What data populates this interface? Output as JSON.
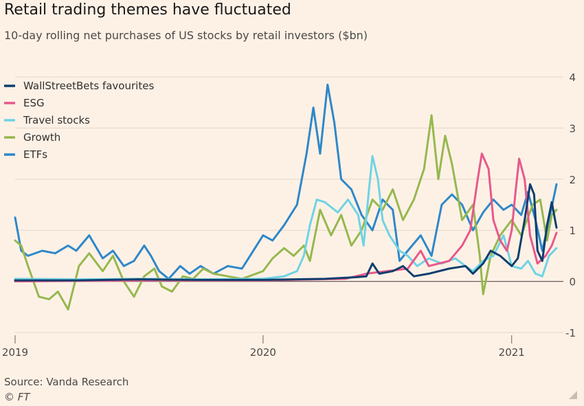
{
  "title": "Retail trading themes have fluctuated",
  "subtitle": "10-day rolling net purchases of US stocks by retail investors ($bn)",
  "source": "Source: Vanda Research",
  "copyright": "© FT",
  "chart_data": {
    "type": "line",
    "x_unit": "date",
    "x_ticks": [
      {
        "label": "2019",
        "date": "2019-01-01"
      },
      {
        "label": "2020",
        "date": "2020-01-01"
      },
      {
        "label": "2021",
        "date": "2021-01-01"
      }
    ],
    "ylim": [
      -1,
      4
    ],
    "y_ticks": [
      -1,
      0,
      1,
      2,
      3,
      4
    ],
    "grid": true,
    "legend_position": "top-left",
    "series": [
      {
        "name": "WallStreetBets favourites",
        "color": "#0f3e6e",
        "points": [
          [
            "2019-01-01",
            0.02
          ],
          [
            "2019-04-01",
            0.02
          ],
          [
            "2019-07-01",
            0.04
          ],
          [
            "2019-10-01",
            0.03
          ],
          [
            "2020-01-01",
            0.03
          ],
          [
            "2020-04-01",
            0.05
          ],
          [
            "2020-05-15",
            0.08
          ],
          [
            "2020-06-01",
            0.1
          ],
          [
            "2020-06-10",
            0.35
          ],
          [
            "2020-06-20",
            0.15
          ],
          [
            "2020-07-10",
            0.2
          ],
          [
            "2020-07-25",
            0.3
          ],
          [
            "2020-08-10",
            0.1
          ],
          [
            "2020-09-01",
            0.15
          ],
          [
            "2020-10-01",
            0.25
          ],
          [
            "2020-10-25",
            0.3
          ],
          [
            "2020-11-05",
            0.15
          ],
          [
            "2020-11-20",
            0.35
          ],
          [
            "2020-12-01",
            0.6
          ],
          [
            "2020-12-15",
            0.5
          ],
          [
            "2021-01-01",
            0.3
          ],
          [
            "2021-01-10",
            0.45
          ],
          [
            "2021-01-20",
            1.2
          ],
          [
            "2021-01-28",
            1.9
          ],
          [
            "2021-02-03",
            1.7
          ],
          [
            "2021-02-08",
            0.6
          ],
          [
            "2021-02-15",
            0.4
          ],
          [
            "2021-02-22",
            1.1
          ],
          [
            "2021-03-01",
            1.55
          ],
          [
            "2021-03-08",
            1.05
          ]
        ]
      },
      {
        "name": "ESG",
        "color": "#e8588a",
        "points": [
          [
            "2019-01-01",
            0.0
          ],
          [
            "2019-07-01",
            0.02
          ],
          [
            "2020-01-01",
            0.02
          ],
          [
            "2020-05-01",
            0.05
          ],
          [
            "2020-06-01",
            0.15
          ],
          [
            "2020-07-01",
            0.2
          ],
          [
            "2020-08-01",
            0.25
          ],
          [
            "2020-08-20",
            0.6
          ],
          [
            "2020-09-01",
            0.3
          ],
          [
            "2020-10-01",
            0.4
          ],
          [
            "2020-10-20",
            0.7
          ],
          [
            "2020-11-01",
            1.0
          ],
          [
            "2020-11-12",
            2.0
          ],
          [
            "2020-11-18",
            2.5
          ],
          [
            "2020-11-28",
            2.2
          ],
          [
            "2020-12-05",
            1.2
          ],
          [
            "2020-12-15",
            0.8
          ],
          [
            "2020-12-25",
            0.6
          ],
          [
            "2021-01-01",
            1.0
          ],
          [
            "2021-01-07",
            1.8
          ],
          [
            "2021-01-12",
            2.4
          ],
          [
            "2021-01-20",
            2.0
          ],
          [
            "2021-01-28",
            0.9
          ],
          [
            "2021-02-08",
            0.35
          ],
          [
            "2021-02-20",
            0.5
          ],
          [
            "2021-03-01",
            0.7
          ],
          [
            "2021-03-08",
            0.95
          ]
        ]
      },
      {
        "name": "Travel stocks",
        "color": "#6fd3e4",
        "points": [
          [
            "2019-01-01",
            0.05
          ],
          [
            "2019-04-01",
            0.04
          ],
          [
            "2019-07-01",
            0.05
          ],
          [
            "2019-10-01",
            0.04
          ],
          [
            "2020-01-01",
            0.05
          ],
          [
            "2020-02-01",
            0.1
          ],
          [
            "2020-02-20",
            0.2
          ],
          [
            "2020-03-01",
            0.5
          ],
          [
            "2020-03-10",
            1.1
          ],
          [
            "2020-03-20",
            1.6
          ],
          [
            "2020-04-01",
            1.55
          ],
          [
            "2020-04-20",
            1.35
          ],
          [
            "2020-05-05",
            1.6
          ],
          [
            "2020-05-20",
            1.3
          ],
          [
            "2020-05-28",
            0.7
          ],
          [
            "2020-06-05",
            1.8
          ],
          [
            "2020-06-10",
            2.45
          ],
          [
            "2020-06-18",
            2.0
          ],
          [
            "2020-06-25",
            1.2
          ],
          [
            "2020-07-05",
            0.9
          ],
          [
            "2020-07-20",
            0.6
          ],
          [
            "2020-08-01",
            0.5
          ],
          [
            "2020-08-15",
            0.3
          ],
          [
            "2020-09-01",
            0.45
          ],
          [
            "2020-09-20",
            0.35
          ],
          [
            "2020-10-10",
            0.45
          ],
          [
            "2020-10-25",
            0.3
          ],
          [
            "2020-11-05",
            0.2
          ],
          [
            "2020-11-20",
            0.4
          ],
          [
            "2020-12-05",
            0.5
          ],
          [
            "2020-12-20",
            0.9
          ],
          [
            "2021-01-01",
            0.3
          ],
          [
            "2021-01-15",
            0.25
          ],
          [
            "2021-01-25",
            0.4
          ],
          [
            "2021-02-05",
            0.15
          ],
          [
            "2021-02-15",
            0.1
          ],
          [
            "2021-02-25",
            0.5
          ],
          [
            "2021-03-08",
            0.65
          ]
        ]
      },
      {
        "name": "Growth",
        "color": "#96b84d",
        "points": [
          [
            "2019-01-01",
            0.8
          ],
          [
            "2019-01-10",
            0.7
          ],
          [
            "2019-01-20",
            0.3
          ],
          [
            "2019-02-05",
            -0.3
          ],
          [
            "2019-02-20",
            -0.35
          ],
          [
            "2019-03-05",
            -0.2
          ],
          [
            "2019-03-20",
            -0.55
          ],
          [
            "2019-04-05",
            0.3
          ],
          [
            "2019-04-20",
            0.55
          ],
          [
            "2019-05-10",
            0.2
          ],
          [
            "2019-05-25",
            0.5
          ],
          [
            "2019-06-10",
            0.0
          ],
          [
            "2019-06-25",
            -0.3
          ],
          [
            "2019-07-10",
            0.1
          ],
          [
            "2019-07-25",
            0.25
          ],
          [
            "2019-08-05",
            -0.1
          ],
          [
            "2019-08-20",
            -0.2
          ],
          [
            "2019-09-05",
            0.1
          ],
          [
            "2019-09-20",
            0.05
          ],
          [
            "2019-10-05",
            0.25
          ],
          [
            "2019-10-20",
            0.15
          ],
          [
            "2019-11-10",
            0.1
          ],
          [
            "2019-12-01",
            0.05
          ],
          [
            "2020-01-01",
            0.2
          ],
          [
            "2020-01-15",
            0.45
          ],
          [
            "2020-02-01",
            0.65
          ],
          [
            "2020-02-15",
            0.5
          ],
          [
            "2020-03-01",
            0.7
          ],
          [
            "2020-03-10",
            0.4
          ],
          [
            "2020-03-25",
            1.4
          ],
          [
            "2020-04-10",
            0.9
          ],
          [
            "2020-04-25",
            1.3
          ],
          [
            "2020-05-10",
            0.7
          ],
          [
            "2020-05-25",
            1.0
          ],
          [
            "2020-06-10",
            1.6
          ],
          [
            "2020-06-25",
            1.4
          ],
          [
            "2020-07-10",
            1.8
          ],
          [
            "2020-07-25",
            1.2
          ],
          [
            "2020-08-10",
            1.6
          ],
          [
            "2020-08-25",
            2.2
          ],
          [
            "2020-09-05",
            3.25
          ],
          [
            "2020-09-15",
            2.0
          ],
          [
            "2020-09-25",
            2.85
          ],
          [
            "2020-10-05",
            2.3
          ],
          [
            "2020-10-20",
            1.2
          ],
          [
            "2020-11-05",
            1.5
          ],
          [
            "2020-11-15",
            0.5
          ],
          [
            "2020-11-20",
            -0.25
          ],
          [
            "2020-12-01",
            0.5
          ],
          [
            "2020-12-15",
            0.9
          ],
          [
            "2021-01-01",
            1.2
          ],
          [
            "2021-01-15",
            0.9
          ],
          [
            "2021-02-01",
            1.5
          ],
          [
            "2021-02-12",
            1.6
          ],
          [
            "2021-02-22",
            0.8
          ],
          [
            "2021-03-01",
            1.3
          ],
          [
            "2021-03-08",
            1.4
          ]
        ]
      },
      {
        "name": "ETFs",
        "color": "#2e87c8",
        "points": [
          [
            "2019-01-01",
            1.25
          ],
          [
            "2019-01-10",
            0.6
          ],
          [
            "2019-01-20",
            0.5
          ],
          [
            "2019-02-10",
            0.6
          ],
          [
            "2019-03-01",
            0.55
          ],
          [
            "2019-03-20",
            0.7
          ],
          [
            "2019-04-01",
            0.6
          ],
          [
            "2019-04-20",
            0.9
          ],
          [
            "2019-05-10",
            0.45
          ],
          [
            "2019-05-25",
            0.6
          ],
          [
            "2019-06-10",
            0.3
          ],
          [
            "2019-06-25",
            0.4
          ],
          [
            "2019-07-10",
            0.7
          ],
          [
            "2019-07-20",
            0.5
          ],
          [
            "2019-08-01",
            0.2
          ],
          [
            "2019-08-15",
            0.05
          ],
          [
            "2019-09-01",
            0.3
          ],
          [
            "2019-09-15",
            0.15
          ],
          [
            "2019-10-01",
            0.3
          ],
          [
            "2019-10-20",
            0.15
          ],
          [
            "2019-11-10",
            0.3
          ],
          [
            "2019-12-01",
            0.25
          ],
          [
            "2020-01-01",
            0.9
          ],
          [
            "2020-01-15",
            0.8
          ],
          [
            "2020-02-01",
            1.1
          ],
          [
            "2020-02-20",
            1.5
          ],
          [
            "2020-03-05",
            2.5
          ],
          [
            "2020-03-15",
            3.4
          ],
          [
            "2020-03-25",
            2.5
          ],
          [
            "2020-04-05",
            3.85
          ],
          [
            "2020-04-15",
            3.1
          ],
          [
            "2020-04-25",
            2.0
          ],
          [
            "2020-05-10",
            1.8
          ],
          [
            "2020-05-25",
            1.3
          ],
          [
            "2020-06-10",
            1.0
          ],
          [
            "2020-06-25",
            1.6
          ],
          [
            "2020-07-10",
            1.4
          ],
          [
            "2020-07-20",
            0.4
          ],
          [
            "2020-08-01",
            0.6
          ],
          [
            "2020-08-20",
            0.9
          ],
          [
            "2020-09-05",
            0.5
          ],
          [
            "2020-09-20",
            1.5
          ],
          [
            "2020-10-05",
            1.7
          ],
          [
            "2020-10-20",
            1.5
          ],
          [
            "2020-11-05",
            1.0
          ],
          [
            "2020-11-20",
            1.35
          ],
          [
            "2020-12-05",
            1.6
          ],
          [
            "2020-12-20",
            1.4
          ],
          [
            "2021-01-01",
            1.5
          ],
          [
            "2021-01-15",
            1.3
          ],
          [
            "2021-01-25",
            1.75
          ],
          [
            "2021-02-05",
            1.2
          ],
          [
            "2021-02-15",
            0.6
          ],
          [
            "2021-02-25",
            1.2
          ],
          [
            "2021-03-08",
            1.9
          ]
        ]
      }
    ]
  }
}
